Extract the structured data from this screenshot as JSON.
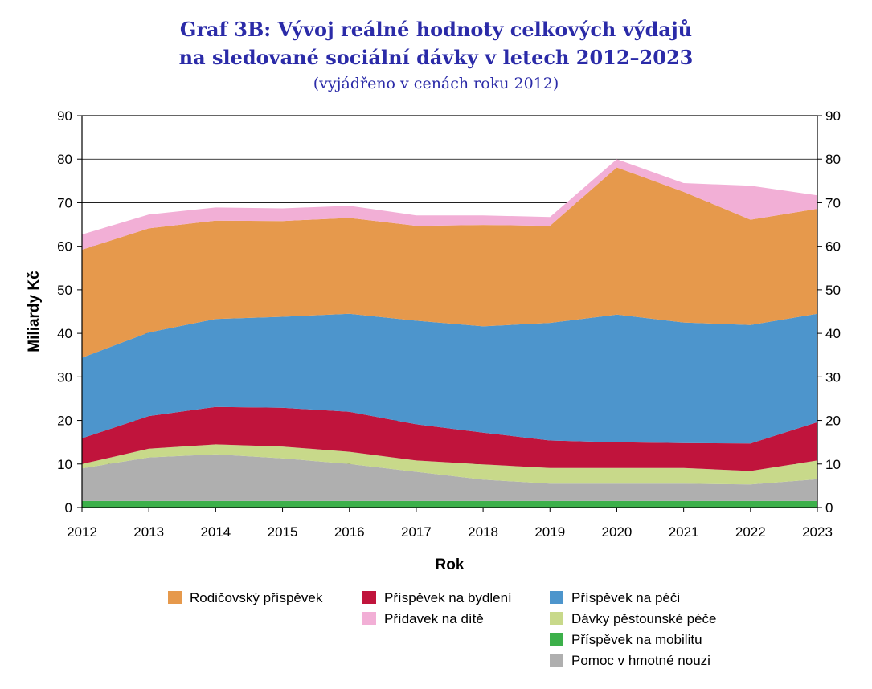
{
  "title_line1": "Graf 3B: Vývoj reálné hodnoty celkových výdajů",
  "title_line2": "na sledované sociální dávky v letech 2012–2023",
  "subtitle": "(vyjádřeno v cenách roku 2012)",
  "chart_data": {
    "type": "area",
    "stacked": true,
    "categories": [
      "2012",
      "2013",
      "2014",
      "2015",
      "2016",
      "2017",
      "2018",
      "2019",
      "2020",
      "2021",
      "2022",
      "2023"
    ],
    "ylabel": "Miliardy Kč",
    "xlabel": "Rok",
    "ylim": [
      0,
      90
    ],
    "yticks": [
      0,
      10,
      20,
      30,
      40,
      50,
      60,
      70,
      80,
      90
    ],
    "grid": true,
    "secondary_y_axis": true,
    "series": [
      {
        "name": "Příspěvek na mobilitu",
        "color": "#3cb04a",
        "values": [
          1.5,
          1.5,
          1.5,
          1.5,
          1.5,
          1.5,
          1.5,
          1.5,
          1.5,
          1.5,
          1.5,
          1.5
        ]
      },
      {
        "name": "Pomoc v hmotné nouzi",
        "color": "#afafaf",
        "values": [
          7.5,
          10.0,
          10.7,
          9.8,
          8.5,
          6.7,
          4.9,
          4.0,
          4.0,
          4.0,
          3.8,
          5.0
        ]
      },
      {
        "name": "Dávky pěstounské péče",
        "color": "#c8d98a",
        "values": [
          1.0,
          2.0,
          2.3,
          2.7,
          2.8,
          2.6,
          3.5,
          3.6,
          3.6,
          3.6,
          3.1,
          4.3
        ]
      },
      {
        "name": "Příspěvek na bydlení",
        "color": "#c0143c",
        "values": [
          5.9,
          7.5,
          8.6,
          8.9,
          9.2,
          8.3,
          7.3,
          6.3,
          5.9,
          5.7,
          6.3,
          8.8
        ]
      },
      {
        "name": "Příspěvek na péči",
        "color": "#4d95cc",
        "values": [
          18.5,
          19.2,
          20.2,
          20.9,
          22.5,
          23.8,
          24.4,
          27.0,
          29.3,
          27.7,
          27.2,
          24.9
        ]
      },
      {
        "name": "Rodičovský příspěvek",
        "color": "#e6994c",
        "values": [
          24.8,
          23.9,
          22.6,
          22.0,
          22.0,
          21.8,
          23.3,
          22.3,
          33.8,
          30.0,
          24.2,
          24.1
        ]
      },
      {
        "name": "Přídavek na dítě",
        "color": "#f2afd6",
        "values": [
          3.5,
          3.2,
          3.0,
          2.9,
          2.8,
          2.4,
          2.2,
          2.0,
          1.9,
          2.0,
          7.8,
          3.1
        ]
      }
    ],
    "legend": {
      "placement": "bottom",
      "columns": [
        [
          "Rodičovský příspěvek"
        ],
        [
          "Příspěvek na bydlení",
          "Přídavek na dítě"
        ],
        [
          "Příspěvek na péči",
          "Dávky pěstounské péče",
          "Příspěvek na mobilitu",
          "Pomoc v hmotné nouzi"
        ]
      ]
    }
  }
}
